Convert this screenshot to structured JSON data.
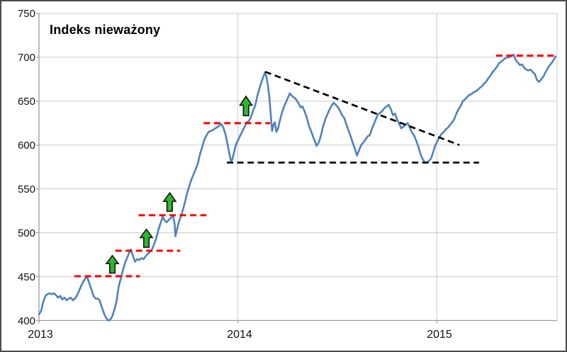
{
  "chart_data": {
    "type": "line",
    "title": "Indeks nieważony",
    "x_axis": {
      "range": [
        2013,
        2015.605
      ],
      "ticks": [
        2013,
        2014,
        2015
      ],
      "tick_labels": [
        "2013",
        "2014",
        "2015"
      ]
    },
    "y_axis": {
      "range": [
        400,
        750
      ],
      "ticks": [
        400,
        450,
        500,
        550,
        600,
        650,
        700,
        750
      ],
      "tick_labels": [
        "400",
        "450",
        "500",
        "550",
        "600",
        "650",
        "700",
        "750"
      ]
    },
    "grid": true,
    "legend": "none",
    "series": [
      {
        "name": "Indeks nieważony",
        "color": "#4F81BD",
        "points": [
          [
            2013.0,
            407
          ],
          [
            2013.011,
            411
          ],
          [
            2013.021,
            421
          ],
          [
            2013.032,
            428
          ],
          [
            2013.043,
            430
          ],
          [
            2013.053,
            431
          ],
          [
            2013.064,
            430
          ],
          [
            2013.075,
            431
          ],
          [
            2013.085,
            429
          ],
          [
            2013.096,
            426
          ],
          [
            2013.107,
            428
          ],
          [
            2013.117,
            424
          ],
          [
            2013.128,
            426
          ],
          [
            2013.139,
            423
          ],
          [
            2013.149,
            425
          ],
          [
            2013.16,
            426
          ],
          [
            2013.17,
            423
          ],
          [
            2013.181,
            425
          ],
          [
            2013.192,
            429
          ],
          [
            2013.202,
            434
          ],
          [
            2013.213,
            440
          ],
          [
            2013.224,
            445
          ],
          [
            2013.234,
            448
          ],
          [
            2013.242,
            450
          ],
          [
            2013.252,
            443
          ],
          [
            2013.263,
            436
          ],
          [
            2013.274,
            428
          ],
          [
            2013.284,
            425
          ],
          [
            2013.295,
            425
          ],
          [
            2013.305,
            423
          ],
          [
            2013.316,
            415
          ],
          [
            2013.327,
            408
          ],
          [
            2013.337,
            403
          ],
          [
            2013.348,
            400
          ],
          [
            2013.359,
            401
          ],
          [
            2013.369,
            405
          ],
          [
            2013.38,
            413
          ],
          [
            2013.391,
            423
          ],
          [
            2013.401,
            439
          ],
          [
            2013.412,
            448
          ],
          [
            2013.423,
            458
          ],
          [
            2013.433,
            466
          ],
          [
            2013.444,
            472
          ],
          [
            2013.455,
            478
          ],
          [
            2013.462,
            481
          ],
          [
            2013.472,
            474
          ],
          [
            2013.483,
            467
          ],
          [
            2013.494,
            470
          ],
          [
            2013.504,
            469
          ],
          [
            2013.515,
            471
          ],
          [
            2013.526,
            470
          ],
          [
            2013.536,
            473
          ],
          [
            2013.547,
            476
          ],
          [
            2013.558,
            478
          ],
          [
            2013.568,
            481
          ],
          [
            2013.579,
            487
          ],
          [
            2013.59,
            494
          ],
          [
            2013.6,
            503
          ],
          [
            2013.611,
            511
          ],
          [
            2013.622,
            518
          ],
          [
            2013.632,
            514
          ],
          [
            2013.643,
            512
          ],
          [
            2013.654,
            515
          ],
          [
            2013.664,
            517
          ],
          [
            2013.675,
            519
          ],
          [
            2013.682,
            510
          ],
          [
            2013.686,
            496
          ],
          [
            2013.693,
            503
          ],
          [
            2013.703,
            512
          ],
          [
            2013.714,
            519
          ],
          [
            2013.725,
            527
          ],
          [
            2013.735,
            536
          ],
          [
            2013.746,
            546
          ],
          [
            2013.757,
            554
          ],
          [
            2013.767,
            561
          ],
          [
            2013.778,
            567
          ],
          [
            2013.789,
            573
          ],
          [
            2013.799,
            579
          ],
          [
            2013.81,
            590
          ],
          [
            2013.821,
            598
          ],
          [
            2013.831,
            606
          ],
          [
            2013.842,
            611
          ],
          [
            2013.853,
            615
          ],
          [
            2013.863,
            616
          ],
          [
            2013.874,
            617
          ],
          [
            2013.885,
            619
          ],
          [
            2013.895,
            620
          ],
          [
            2013.906,
            622
          ],
          [
            2013.916,
            624
          ],
          [
            2013.927,
            620
          ],
          [
            2013.938,
            612
          ],
          [
            2013.948,
            601
          ],
          [
            2013.959,
            588
          ],
          [
            2013.966,
            581
          ],
          [
            2013.973,
            584
          ],
          [
            2013.98,
            591
          ],
          [
            2013.991,
            601
          ],
          [
            2014.002,
            606
          ],
          [
            2014.012,
            611
          ],
          [
            2014.023,
            616
          ],
          [
            2014.034,
            621
          ],
          [
            2014.044,
            626
          ],
          [
            2014.055,
            627
          ],
          [
            2014.066,
            632
          ],
          [
            2014.076,
            639
          ],
          [
            2014.087,
            645
          ],
          [
            2014.098,
            656
          ],
          [
            2014.108,
            664
          ],
          [
            2014.119,
            672
          ],
          [
            2014.13,
            679
          ],
          [
            2014.137,
            683
          ],
          [
            2014.144,
            677
          ],
          [
            2014.151,
            668
          ],
          [
            2014.158,
            655
          ],
          [
            2014.165,
            636
          ],
          [
            2014.172,
            616
          ],
          [
            2014.179,
            623
          ],
          [
            2014.186,
            626
          ],
          [
            2014.193,
            615
          ],
          [
            2014.201,
            618
          ],
          [
            2014.208,
            625
          ],
          [
            2014.218,
            634
          ],
          [
            2014.229,
            642
          ],
          [
            2014.24,
            648
          ],
          [
            2014.25,
            653
          ],
          [
            2014.261,
            659
          ],
          [
            2014.272,
            656
          ],
          [
            2014.283,
            654
          ],
          [
            2014.293,
            652
          ],
          [
            2014.304,
            648
          ],
          [
            2014.315,
            643
          ],
          [
            2014.325,
            644
          ],
          [
            2014.336,
            638
          ],
          [
            2014.347,
            631
          ],
          [
            2014.357,
            622
          ],
          [
            2014.368,
            616
          ],
          [
            2014.379,
            609
          ],
          [
            2014.389,
            603
          ],
          [
            2014.396,
            599
          ],
          [
            2014.407,
            603
          ],
          [
            2014.418,
            611
          ],
          [
            2014.428,
            621
          ],
          [
            2014.439,
            629
          ],
          [
            2014.45,
            635
          ],
          [
            2014.46,
            640
          ],
          [
            2014.471,
            645
          ],
          [
            2014.481,
            648
          ],
          [
            2014.492,
            646
          ],
          [
            2014.503,
            643
          ],
          [
            2014.513,
            639
          ],
          [
            2014.524,
            634
          ],
          [
            2014.535,
            631
          ],
          [
            2014.545,
            624
          ],
          [
            2014.556,
            617
          ],
          [
            2014.567,
            610
          ],
          [
            2014.577,
            603
          ],
          [
            2014.588,
            596
          ],
          [
            2014.599,
            588
          ],
          [
            2014.609,
            594
          ],
          [
            2014.62,
            600
          ],
          [
            2014.631,
            603
          ],
          [
            2014.641,
            606
          ],
          [
            2014.652,
            610
          ],
          [
            2014.663,
            611
          ],
          [
            2014.673,
            618
          ],
          [
            2014.684,
            624
          ],
          [
            2014.695,
            630
          ],
          [
            2014.705,
            635
          ],
          [
            2014.716,
            637
          ],
          [
            2014.727,
            639
          ],
          [
            2014.737,
            642
          ],
          [
            2014.748,
            644
          ],
          [
            2014.758,
            646
          ],
          [
            2014.769,
            641
          ],
          [
            2014.78,
            634
          ],
          [
            2014.79,
            636
          ],
          [
            2014.801,
            629
          ],
          [
            2014.812,
            624
          ],
          [
            2014.822,
            619
          ],
          [
            2014.833,
            621
          ],
          [
            2014.844,
            623
          ],
          [
            2014.854,
            625
          ],
          [
            2014.865,
            620
          ],
          [
            2014.876,
            614
          ],
          [
            2014.886,
            611
          ],
          [
            2014.897,
            605
          ],
          [
            2014.908,
            598
          ],
          [
            2014.918,
            590
          ],
          [
            2014.929,
            584
          ],
          [
            2014.94,
            580
          ],
          [
            2014.95,
            580
          ],
          [
            2014.961,
            582
          ],
          [
            2014.972,
            585
          ],
          [
            2014.982,
            592
          ],
          [
            2014.993,
            600
          ],
          [
            2015.004,
            605
          ],
          [
            2015.014,
            609
          ],
          [
            2015.025,
            613
          ],
          [
            2015.036,
            615
          ],
          [
            2015.046,
            618
          ],
          [
            2015.057,
            620
          ],
          [
            2015.067,
            623
          ],
          [
            2015.078,
            626
          ],
          [
            2015.089,
            630
          ],
          [
            2015.099,
            636
          ],
          [
            2015.11,
            641
          ],
          [
            2015.121,
            645
          ],
          [
            2015.131,
            650
          ],
          [
            2015.142,
            652
          ],
          [
            2015.153,
            655
          ],
          [
            2015.163,
            657
          ],
          [
            2015.174,
            658
          ],
          [
            2015.184,
            660
          ],
          [
            2015.195,
            661
          ],
          [
            2015.206,
            663
          ],
          [
            2015.216,
            665
          ],
          [
            2015.227,
            667
          ],
          [
            2015.238,
            670
          ],
          [
            2015.248,
            672
          ],
          [
            2015.259,
            676
          ],
          [
            2015.27,
            679
          ],
          [
            2015.28,
            683
          ],
          [
            2015.291,
            686
          ],
          [
            2015.302,
            689
          ],
          [
            2015.312,
            693
          ],
          [
            2015.323,
            695
          ],
          [
            2015.334,
            697
          ],
          [
            2015.344,
            699
          ],
          [
            2015.355,
            700
          ],
          [
            2015.365,
            700
          ],
          [
            2015.376,
            702
          ],
          [
            2015.387,
            703
          ],
          [
            2015.397,
            697
          ],
          [
            2015.408,
            694
          ],
          [
            2015.419,
            691
          ],
          [
            2015.429,
            692
          ],
          [
            2015.44,
            688
          ],
          [
            2015.451,
            686
          ],
          [
            2015.461,
            685
          ],
          [
            2015.472,
            686
          ],
          [
            2015.483,
            683
          ],
          [
            2015.493,
            681
          ],
          [
            2015.504,
            674
          ],
          [
            2015.515,
            672
          ],
          [
            2015.525,
            675
          ],
          [
            2015.536,
            678
          ],
          [
            2015.547,
            683
          ],
          [
            2015.557,
            687
          ],
          [
            2015.568,
            691
          ],
          [
            2015.579,
            694
          ],
          [
            2015.59,
            698
          ],
          [
            2015.597,
            701
          ]
        ]
      }
    ],
    "resistance_lines": [
      {
        "value": 450.5,
        "t1": 2013.178,
        "t2": 2013.508
      },
      {
        "value": 479.5,
        "t1": 2013.384,
        "t2": 2013.71
      },
      {
        "value": 520.0,
        "t1": 2013.501,
        "t2": 2013.842
      },
      {
        "value": 625.0,
        "t1": 2013.828,
        "t2": 2014.162
      },
      {
        "value": 702.0,
        "t1": 2015.298,
        "t2": 2015.6
      }
    ],
    "trend_lines": [
      {
        "t1": 2014.137,
        "v1": 683.5,
        "t2": 2015.114,
        "v2": 600.0
      },
      {
        "t1": 2013.945,
        "v1": 580.0,
        "t2": 2015.213,
        "v2": 580.0
      }
    ],
    "arrows": [
      {
        "t": 2013.369,
        "v_from": 454.0,
        "v_to": 474.0
      },
      {
        "t": 2013.54,
        "v_from": 483.5,
        "v_to": 504.0
      },
      {
        "t": 2013.657,
        "v_from": 524.5,
        "v_to": 545.5
      },
      {
        "t": 2014.041,
        "v_from": 633.5,
        "v_to": 655.5
      }
    ]
  },
  "colors": {
    "series": "#4F81BD",
    "resistance": "#FF0000",
    "trend": "#000000",
    "arrow_fill": "#2EB82E",
    "arrow_stroke": "#111111",
    "grid": "#C9C9C9",
    "axis": "#9A9A9A",
    "text": "#111111"
  }
}
